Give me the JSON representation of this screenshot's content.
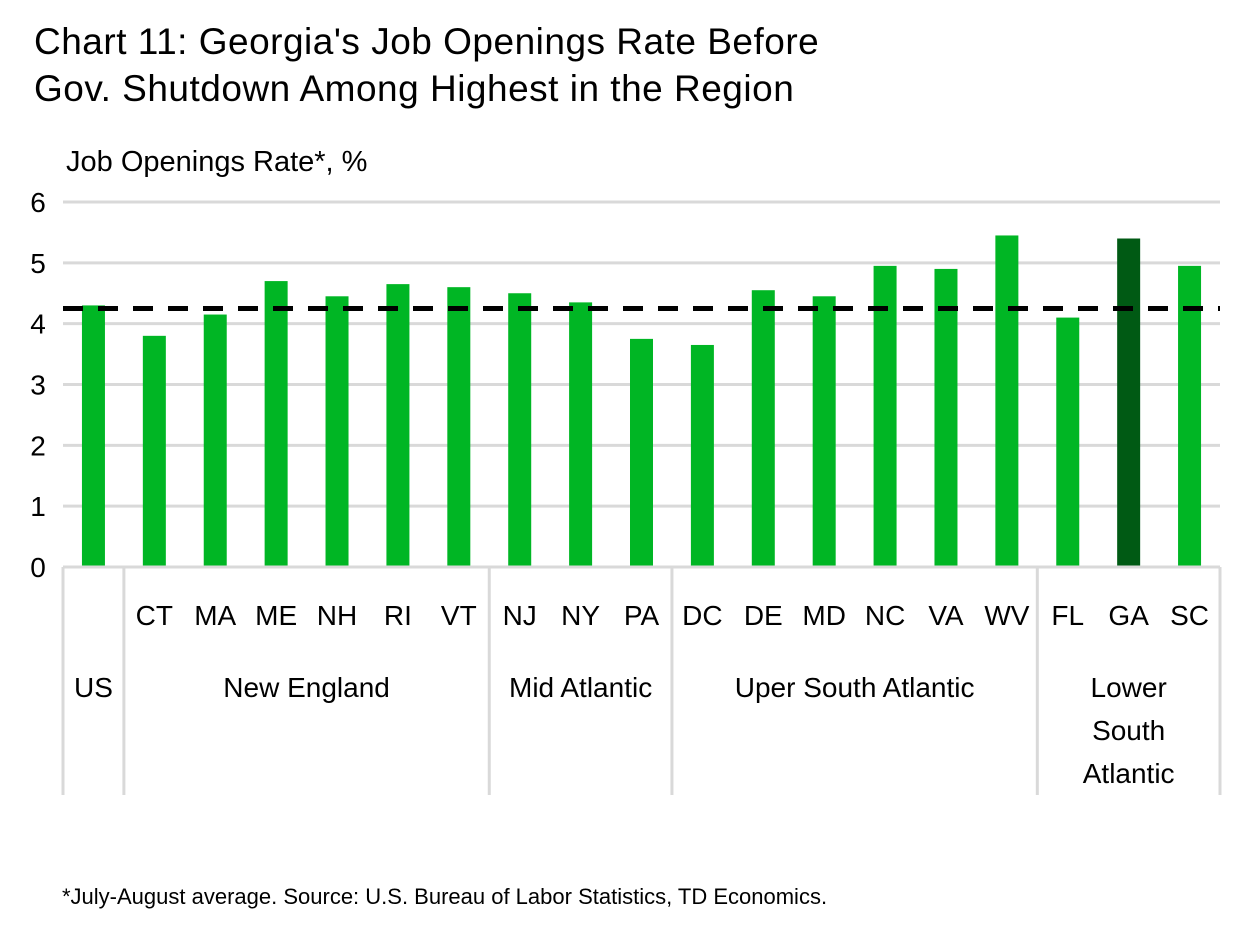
{
  "chart_data": {
    "type": "bar",
    "title": "Chart 11: Georgia's Job Openings Rate Before Gov. Shutdown Among Highest in the Region",
    "title_lines": [
      "Chart 11: Georgia's Job Openings Rate Before",
      "Gov. Shutdown Among Highest in the Region"
    ],
    "ylabel": "Job Openings Rate*, %",
    "ylim": [
      0,
      6
    ],
    "yticks": [
      0,
      1,
      2,
      3,
      4,
      5,
      6
    ],
    "grid": true,
    "categories": [
      "US",
      "CT",
      "MA",
      "ME",
      "NH",
      "RI",
      "VT",
      "NJ",
      "NY",
      "PA",
      "DC",
      "DE",
      "MD",
      "NC",
      "VA",
      "WV",
      "FL",
      "GA",
      "SC"
    ],
    "values": [
      4.3,
      3.8,
      4.15,
      4.7,
      4.45,
      4.65,
      4.6,
      4.5,
      4.35,
      3.75,
      3.65,
      4.55,
      4.45,
      4.95,
      4.9,
      5.45,
      4.1,
      5.4,
      4.95
    ],
    "highlight": "GA",
    "reference_line": {
      "value": 4.25,
      "style": "dashed",
      "color": "#000000"
    },
    "groups": [
      {
        "label": [
          "US"
        ],
        "members": [
          "US"
        ],
        "show_member_labels": false
      },
      {
        "label": [
          "New England"
        ],
        "members": [
          "CT",
          "MA",
          "ME",
          "NH",
          "RI",
          "VT"
        ]
      },
      {
        "label": [
          "Mid Atlantic"
        ],
        "members": [
          "NJ",
          "NY",
          "PA"
        ]
      },
      {
        "label": [
          "Uper South Atlantic"
        ],
        "members": [
          "DC",
          "DE",
          "MD",
          "NC",
          "VA",
          "WV"
        ]
      },
      {
        "label": [
          "Lower",
          "South",
          "Atlantic"
        ],
        "members": [
          "FL",
          "GA",
          "SC"
        ]
      }
    ],
    "colors": {
      "bar": "#00b624",
      "highlight": "#005a14",
      "grid": "#d9d9d9"
    },
    "footnote": "*July-August average. Source: U.S. Bureau of Labor Statistics, TD Economics."
  }
}
